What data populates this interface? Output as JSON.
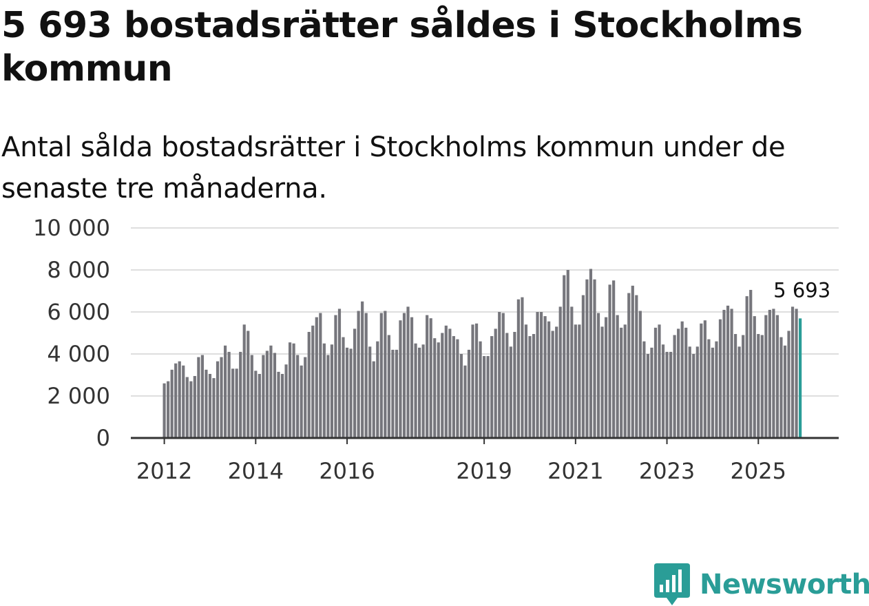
{
  "title": "5 693 bostadsrätter såldes i Stockholms kommun",
  "subtitle": "Antal sålda bostadsrätter i Stockholms kommun under de senaste tre månaderna.",
  "brand": {
    "name": "Newsworthy",
    "color": "#2a9d97",
    "icon": "bar-chart-badge-icon"
  },
  "colors": {
    "bar": "#76767c",
    "highlight": "#2a9d97",
    "grid": "#dedede",
    "axis": "#333333"
  },
  "chart_data": {
    "type": "bar",
    "title": "5 693 bostadsrätter såldes i Stockholms kommun",
    "xlabel": "",
    "ylabel": "",
    "ylim": [
      0,
      10000
    ],
    "y_ticks": [
      0,
      2000,
      4000,
      6000,
      8000,
      10000
    ],
    "y_tick_labels": [
      "0",
      "2 000",
      "4 000",
      "6 000",
      "8 000",
      "10 000"
    ],
    "x_ticks": [
      {
        "label": "2012",
        "index": 0
      },
      {
        "label": "2014",
        "index": 24
      },
      {
        "label": "2016",
        "index": 48
      },
      {
        "label": "2019",
        "index": 84
      },
      {
        "label": "2021",
        "index": 108
      },
      {
        "label": "2023",
        "index": 132
      },
      {
        "label": "2025",
        "index": 156
      }
    ],
    "highlight_label": "5 693",
    "start": "2012-01",
    "frequency": "monthly",
    "values": [
      2600,
      2700,
      3250,
      3550,
      3650,
      3450,
      2900,
      2700,
      2950,
      3850,
      3950,
      3250,
      3050,
      2850,
      3650,
      3850,
      4400,
      4100,
      3300,
      3300,
      4100,
      5400,
      5100,
      3950,
      3200,
      3050,
      3950,
      4150,
      4400,
      4050,
      3150,
      3050,
      3500,
      4550,
      4500,
      3950,
      3450,
      3850,
      5050,
      5350,
      5750,
      5950,
      4500,
      3950,
      4450,
      5850,
      6150,
      4800,
      4300,
      4250,
      5200,
      6050,
      6500,
      5950,
      4350,
      3650,
      4600,
      5950,
      6050,
      4900,
      4200,
      4200,
      5600,
      5950,
      6250,
      5750,
      4500,
      4300,
      4450,
      5850,
      5700,
      4750,
      4550,
      5000,
      5350,
      5200,
      4850,
      4700,
      4000,
      3450,
      4200,
      5400,
      5450,
      4600,
      3900,
      3900,
      4850,
      5200,
      6000,
      5950,
      5000,
      4350,
      5050,
      6600,
      6700,
      5400,
      4850,
      4950,
      6000,
      6000,
      5800,
      5550,
      5100,
      5300,
      6250,
      7750,
      8000,
      6250,
      5400,
      5400,
      6800,
      7550,
      8050,
      7550,
      5950,
      5300,
      5750,
      7300,
      7500,
      5850,
      5250,
      5400,
      6900,
      7250,
      6800,
      6050,
      4600,
      4000,
      4300,
      5250,
      5400,
      4450,
      4100,
      4100,
      4900,
      5200,
      5550,
      5250,
      4350,
      4000,
      4350,
      5450,
      5600,
      4700,
      4300,
      4600,
      5650,
      6100,
      6300,
      6150,
      4950,
      4350,
      4900,
      6750,
      7050,
      5800,
      4950,
      4900,
      5850,
      6100,
      6150,
      5850,
      4800,
      4400,
      5100,
      6250,
      6150,
      5693
    ]
  }
}
